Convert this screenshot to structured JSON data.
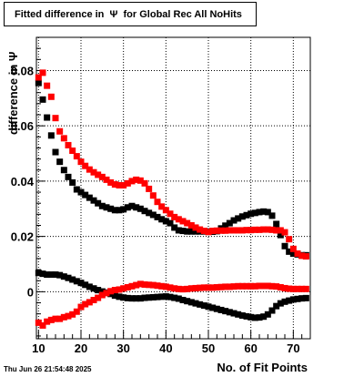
{
  "title": "Fitted difference in  Ψ  for Global Rec All NoHits",
  "datestamp": "Thu Jun 26 21:54:48 2025",
  "chart_data": {
    "type": "scatter",
    "title": "Fitted difference in  Ψ  for Global Rec All NoHits",
    "xlabel": "No. of Fit Points",
    "ylabel": "difference in  Ψ",
    "xlim": [
      9.5,
      74
    ],
    "ylim": [
      -0.017,
      0.092
    ],
    "xticks": [
      10,
      20,
      30,
      40,
      50,
      60,
      70
    ],
    "xtick_labels": [
      "10",
      "20",
      "30",
      "40",
      "50",
      "60",
      "70"
    ],
    "yticks": [
      0,
      0.02,
      0.04,
      0.06,
      0.08
    ],
    "ytick_labels": [
      "0",
      "0.02",
      "0.04",
      "0.06",
      "0.08"
    ],
    "grid": true,
    "marker": "square",
    "series": [
      {
        "color": "#000000",
        "x": [
          10,
          11,
          12,
          13,
          14,
          15,
          16,
          17,
          18,
          19,
          20,
          21,
          22,
          23,
          24,
          25,
          26,
          27,
          28,
          29,
          30,
          31,
          32,
          33,
          34,
          35,
          36,
          37,
          38,
          39,
          40,
          41,
          42,
          43,
          44,
          45,
          46,
          47,
          48,
          49,
          50,
          51,
          52,
          53,
          54,
          55,
          56,
          57,
          58,
          59,
          60,
          61,
          62,
          63,
          64,
          65,
          66,
          67,
          68,
          69,
          70,
          71,
          72,
          73
        ],
        "y": [
          0.0755,
          0.0695,
          0.063,
          0.0565,
          0.0505,
          0.047,
          0.044,
          0.0415,
          0.0395,
          0.037,
          0.036,
          0.035,
          0.034,
          0.033,
          0.032,
          0.031,
          0.0305,
          0.03,
          0.0295,
          0.0295,
          0.0298,
          0.0305,
          0.031,
          0.0305,
          0.03,
          0.0292,
          0.0285,
          0.0278,
          0.027,
          0.0262,
          0.0255,
          0.0248,
          0.0232,
          0.0222,
          0.022,
          0.0218,
          0.0218,
          0.0218,
          0.0218,
          0.0218,
          0.0218,
          0.0217,
          0.0219,
          0.0229,
          0.0239,
          0.0248,
          0.0258,
          0.0265,
          0.0272,
          0.0277,
          0.0282,
          0.0285,
          0.0288,
          0.029,
          0.0288,
          0.0275,
          0.0245,
          0.0205,
          0.0165,
          0.0145,
          0.0138,
          0.0135,
          0.0132,
          0.0132
        ]
      },
      {
        "color": "#000000",
        "x": [
          10,
          11,
          12,
          13,
          14,
          15,
          16,
          17,
          18,
          19,
          20,
          21,
          22,
          23,
          24,
          25,
          26,
          27,
          28,
          29,
          30,
          31,
          32,
          33,
          34,
          35,
          36,
          37,
          38,
          39,
          40,
          41,
          42,
          43,
          44,
          45,
          46,
          47,
          48,
          49,
          50,
          51,
          52,
          53,
          54,
          55,
          56,
          57,
          58,
          59,
          60,
          61,
          62,
          63,
          64,
          65,
          66,
          67,
          68,
          69,
          70,
          71,
          72,
          73
        ],
        "y": [
          0.0068,
          0.0065,
          0.0062,
          0.0062,
          0.0062,
          0.006,
          0.0055,
          0.005,
          0.0044,
          0.0038,
          0.0032,
          0.0025,
          0.0018,
          0.0012,
          0.0006,
          0.0001,
          -0.0003,
          -0.0008,
          -0.0014,
          -0.0018,
          -0.0021,
          -0.0023,
          -0.0024,
          -0.0024,
          -0.0024,
          -0.0022,
          -0.0021,
          -0.002,
          -0.0019,
          -0.0018,
          -0.0017,
          -0.0019,
          -0.0022,
          -0.0025,
          -0.003,
          -0.0034,
          -0.0038,
          -0.0042,
          -0.0046,
          -0.005,
          -0.0054,
          -0.0058,
          -0.0062,
          -0.0066,
          -0.007,
          -0.0074,
          -0.0078,
          -0.0082,
          -0.0086,
          -0.0089,
          -0.0092,
          -0.0094,
          -0.0093,
          -0.009,
          -0.0082,
          -0.0068,
          -0.0052,
          -0.0042,
          -0.0036,
          -0.0032,
          -0.0028,
          -0.0026,
          -0.0024,
          -0.0023
        ]
      },
      {
        "color": "#ff0000",
        "x": [
          10,
          11,
          12,
          13,
          14,
          15,
          16,
          17,
          18,
          19,
          20,
          21,
          22,
          23,
          24,
          25,
          26,
          27,
          28,
          29,
          30,
          31,
          32,
          33,
          34,
          35,
          36,
          37,
          38,
          39,
          40,
          41,
          42,
          43,
          44,
          45,
          46,
          47,
          48,
          49,
          50,
          51,
          52,
          53,
          54,
          55,
          56,
          57,
          58,
          59,
          60,
          61,
          62,
          63,
          64,
          65,
          66,
          67,
          68,
          69,
          70,
          71,
          72,
          73
        ],
        "y": [
          0.0775,
          0.0792,
          0.0745,
          0.0705,
          0.0628,
          0.058,
          0.0555,
          0.053,
          0.051,
          0.049,
          0.047,
          0.0455,
          0.0442,
          0.0432,
          0.0423,
          0.0415,
          0.0405,
          0.0395,
          0.0388,
          0.0385,
          0.0385,
          0.0392,
          0.04,
          0.0405,
          0.0402,
          0.0392,
          0.0372,
          0.0348,
          0.0325,
          0.0308,
          0.0295,
          0.0282,
          0.027,
          0.0262,
          0.0255,
          0.0248,
          0.024,
          0.0232,
          0.0225,
          0.022,
          0.0216,
          0.022,
          0.0221,
          0.0221,
          0.0221,
          0.0222,
          0.0222,
          0.0222,
          0.0222,
          0.0223,
          0.0223,
          0.0224,
          0.0224,
          0.0225,
          0.0225,
          0.0224,
          0.0222,
          0.0222,
          0.0215,
          0.019,
          0.0155,
          0.0138,
          0.013,
          0.0128
        ]
      },
      {
        "color": "#ff0000",
        "x": [
          10,
          11,
          12,
          13,
          14,
          15,
          16,
          17,
          18,
          19,
          20,
          21,
          22,
          23,
          24,
          25,
          26,
          27,
          28,
          29,
          30,
          31,
          32,
          33,
          34,
          35,
          36,
          37,
          38,
          39,
          40,
          41,
          42,
          43,
          44,
          45,
          46,
          47,
          48,
          49,
          50,
          51,
          52,
          53,
          54,
          55,
          56,
          57,
          58,
          59,
          60,
          61,
          62,
          63,
          64,
          65,
          66,
          67,
          68,
          69,
          70,
          71,
          72,
          73
        ],
        "y": [
          -0.0112,
          -0.0122,
          -0.0108,
          -0.0102,
          -0.0098,
          -0.0098,
          -0.0092,
          -0.0088,
          -0.0082,
          -0.0072,
          -0.0055,
          -0.0045,
          -0.0038,
          -0.003,
          -0.0022,
          -0.0012,
          -0.0005,
          0.0002,
          0.0006,
          0.0008,
          0.0012,
          0.0016,
          0.002,
          0.0024,
          0.0028,
          0.0026,
          0.0025,
          0.0024,
          0.0022,
          0.002,
          0.0018,
          0.0015,
          0.0012,
          0.001,
          0.0009,
          0.001,
          0.0012,
          0.0013,
          0.0014,
          0.0015,
          0.0015,
          0.0015,
          0.0016,
          0.0017,
          0.0018,
          0.0018,
          0.0019,
          0.002,
          0.002,
          0.002,
          0.002,
          0.002,
          0.0021,
          0.0021,
          0.0021,
          0.002,
          0.0019,
          0.0016,
          0.0013,
          0.0011,
          0.001,
          0.001,
          0.001,
          0.001
        ]
      }
    ]
  }
}
